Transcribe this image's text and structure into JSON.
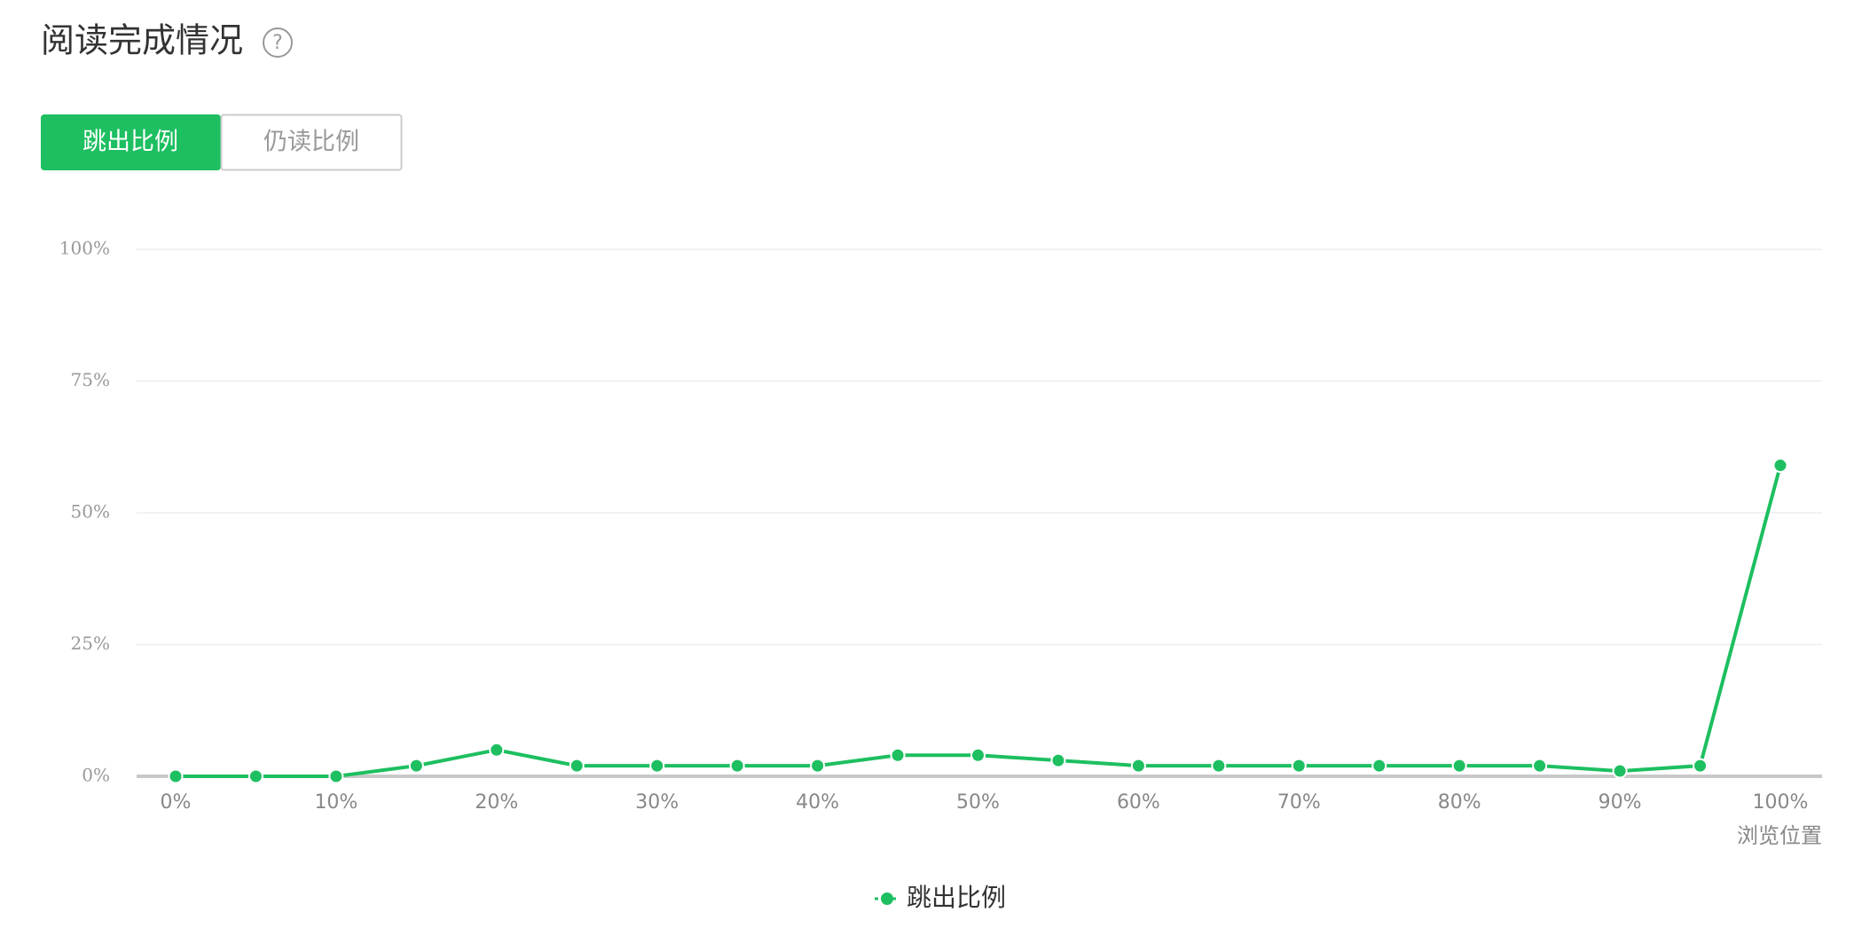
{
  "header": {
    "title": "阅读完成情况",
    "help_icon": "?"
  },
  "tabs": [
    "跳出比例",
    "仍读比例"
  ],
  "chart_data": {
    "type": "line",
    "x_label": "浏览位置",
    "categories": [
      "0%",
      null,
      "10%",
      null,
      "20%",
      null,
      "30%",
      null,
      "40%",
      null,
      "50%",
      null,
      "60%",
      null,
      "70%",
      null,
      "80%",
      null,
      "90%",
      null,
      "100%"
    ],
    "series": [
      {
        "name": "跳出比例",
        "color": "#1dbf60",
        "values": [
          0,
          0,
          0,
          2,
          5,
          2,
          2,
          2,
          2,
          4,
          4,
          3,
          2,
          2,
          2,
          2,
          2,
          2,
          1,
          2,
          59
        ]
      }
    ],
    "ylim": [
      0,
      100
    ],
    "yticks": [
      {
        "value": 0,
        "label": "0%"
      },
      {
        "value": 25,
        "label": "25%"
      },
      {
        "value": 50,
        "label": "50%"
      },
      {
        "value": 75,
        "label": "75%"
      },
      {
        "value": 100,
        "label": "100%"
      }
    ],
    "grid": true,
    "legend": "bottom"
  }
}
